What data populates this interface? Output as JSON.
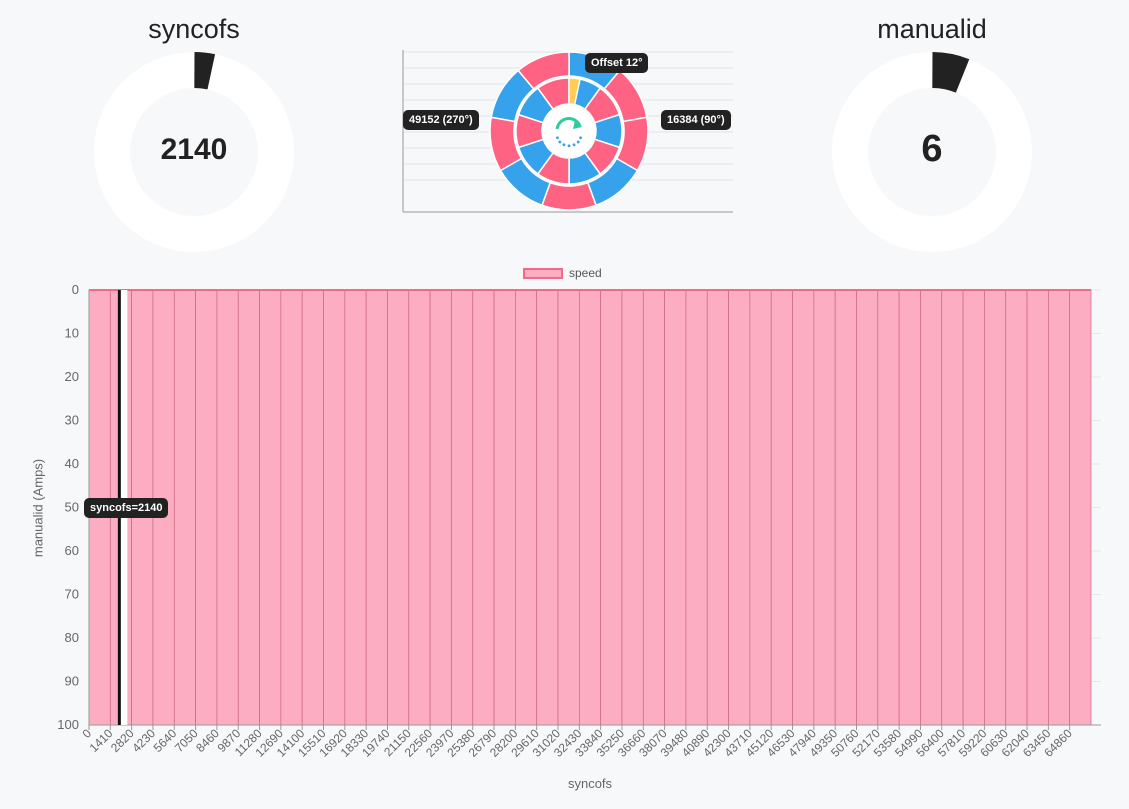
{
  "gauges": {
    "left": {
      "title": "syncofs",
      "value": "2140",
      "fraction": 0.033
    },
    "right": {
      "title": "manualid",
      "value": "6",
      "fraction": 0.06
    }
  },
  "polar": {
    "labels": {
      "offset": "Offset 12°",
      "right": "16384 (90°)",
      "left": "49152 (270°)"
    },
    "colors": {
      "pink": "#ff6384",
      "blue": "#36a2eb",
      "yellow": "#ffcd56",
      "spinner": "#2ecc9a"
    }
  },
  "marker": {
    "label": "syncofs=2140"
  },
  "chart_data": {
    "type": "bar",
    "title": "",
    "xlabel": "syncofs",
    "ylabel": "manualid (Amps)",
    "ylim": [
      0,
      100
    ],
    "y_reversed": true,
    "y_ticks": [
      "0",
      "10",
      "20",
      "30",
      "40",
      "50",
      "60",
      "70",
      "80",
      "90",
      "100"
    ],
    "categories": [
      "0",
      "1410",
      "2820",
      "4230",
      "5640",
      "7050",
      "8460",
      "9870",
      "11280",
      "12690",
      "14100",
      "15510",
      "16920",
      "18330",
      "19740",
      "21150",
      "22560",
      "23970",
      "25380",
      "26790",
      "28200",
      "29610",
      "31020",
      "32430",
      "33840",
      "35250",
      "36660",
      "38070",
      "39480",
      "40890",
      "42300",
      "43710",
      "45120",
      "46530",
      "47940",
      "49350",
      "50760",
      "52170",
      "53580",
      "54990",
      "56400",
      "57810",
      "59220",
      "60630",
      "62040",
      "63450",
      "64860"
    ],
    "series": [
      {
        "name": "speed",
        "color": "#fdadc1",
        "border": "#f06a8b",
        "values": [
          100,
          100,
          100,
          100,
          100,
          100,
          100,
          100,
          100,
          100,
          100,
          100,
          100,
          100,
          100,
          100,
          100,
          100,
          100,
          100,
          100,
          100,
          100,
          100,
          100,
          100,
          100,
          100,
          100,
          100,
          100,
          100,
          100,
          100,
          100,
          100,
          100,
          100,
          100,
          100,
          100,
          100,
          100,
          100,
          100,
          100,
          100
        ]
      }
    ],
    "marker_x": 2140,
    "legend": "top-center",
    "grid": true
  }
}
